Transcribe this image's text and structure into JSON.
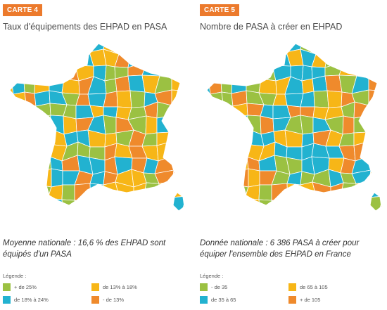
{
  "colors": {
    "badge": "#ec7a2c",
    "green": "#9bc142",
    "cyan": "#22b2d0",
    "yellow": "#f7b617",
    "orange": "#ef8a2c",
    "border": "#ffffff"
  },
  "maps": [
    {
      "badge": "CARTE 4",
      "title": "Taux d'équipements des EHPAD en PASA",
      "caption": "Moyenne nationale : 16,6 % des EHPAD sont équipés d'un PASA",
      "legend_title": "Légende :",
      "legend": [
        {
          "label": "+ de 25%",
          "color": "#9bc142"
        },
        {
          "label": "de 13% à 18%",
          "color": "#f7b617"
        },
        {
          "label": "de 18% à 24%",
          "color": "#22b2d0"
        },
        {
          "label": "- de 13%",
          "color": "#ef8a2c"
        }
      ]
    },
    {
      "badge": "CARTE 5",
      "title": "Nombre de PASA à créer en EHPAD",
      "caption": "Donnée nationale : 6 386 PASA à créer pour équiper l'ensemble des EHPAD en France",
      "legend_title": "Légende :",
      "legend": [
        {
          "label": "- de 35",
          "color": "#9bc142"
        },
        {
          "label": "de 65 à 105",
          "color": "#f7b617"
        },
        {
          "label": "de 35 à 65",
          "color": "#22b2d0"
        },
        {
          "label": "+ de 105",
          "color": "#ef8a2c"
        }
      ]
    }
  ]
}
